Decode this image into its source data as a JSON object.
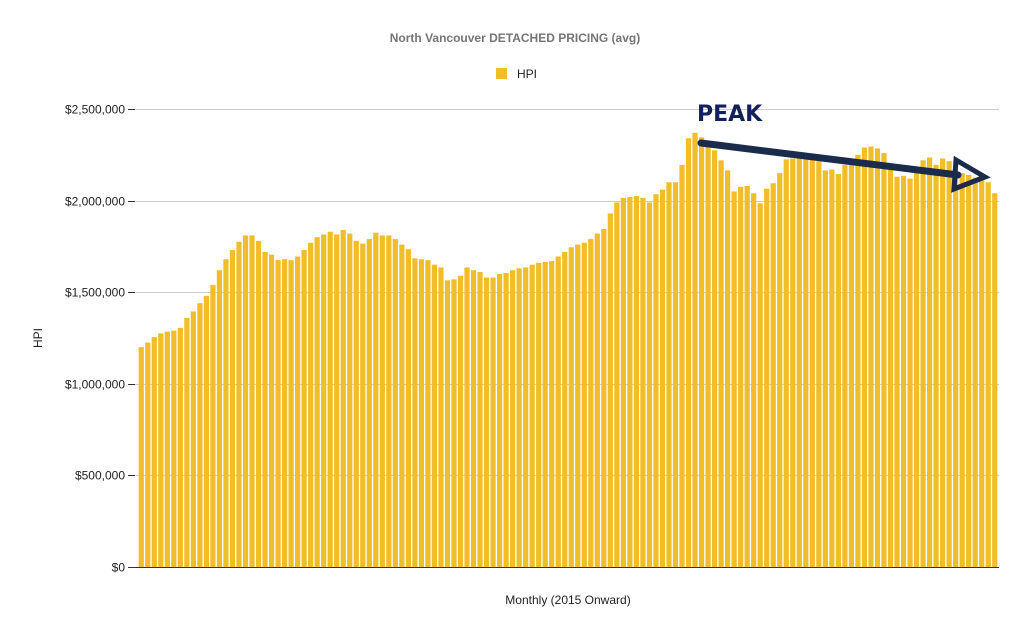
{
  "chart_data": {
    "type": "bar",
    "title": "North Vancouver DETACHED PRICING (avg)",
    "xlabel": "Monthly (2015 Onward)",
    "ylabel": "HPI",
    "ylim": [
      0,
      2500000
    ],
    "yticks": [
      0,
      500000,
      1000000,
      1500000,
      2000000,
      2500000
    ],
    "ytick_labels": [
      "$0",
      "$500,000",
      "$1,000,000",
      "$1,500,000",
      "$2,000,000",
      "$2,500,000"
    ],
    "grid": true,
    "legend": {
      "placement": "top-center",
      "entries": [
        "HPI"
      ]
    },
    "series": [
      {
        "name": "HPI",
        "color": "#f1bd29",
        "values": [
          1200000,
          1225000,
          1255000,
          1275000,
          1285000,
          1290000,
          1305000,
          1360000,
          1395000,
          1440000,
          1480000,
          1540000,
          1620000,
          1680000,
          1730000,
          1775000,
          1810000,
          1810000,
          1780000,
          1720000,
          1705000,
          1675000,
          1680000,
          1675000,
          1695000,
          1730000,
          1770000,
          1800000,
          1815000,
          1830000,
          1815000,
          1840000,
          1820000,
          1780000,
          1765000,
          1790000,
          1825000,
          1810000,
          1810000,
          1790000,
          1760000,
          1735000,
          1685000,
          1680000,
          1675000,
          1650000,
          1635000,
          1565000,
          1570000,
          1590000,
          1635000,
          1620000,
          1610000,
          1580000,
          1580000,
          1600000,
          1605000,
          1620000,
          1630000,
          1635000,
          1650000,
          1660000,
          1665000,
          1670000,
          1695000,
          1720000,
          1745000,
          1760000,
          1770000,
          1790000,
          1820000,
          1845000,
          1930000,
          1990000,
          2015000,
          2020000,
          2025000,
          2015000,
          1990000,
          2035000,
          2060000,
          2100000,
          2100000,
          2195000,
          2340000,
          2370000,
          2345000,
          2320000,
          2275000,
          2220000,
          2165000,
          2050000,
          2075000,
          2080000,
          2040000,
          1985000,
          2065000,
          2095000,
          2150000,
          2225000,
          2230000,
          2240000,
          2235000,
          2225000,
          2215000,
          2165000,
          2170000,
          2145000,
          2195000,
          2225000,
          2250000,
          2290000,
          2295000,
          2285000,
          2260000,
          2185000,
          2130000,
          2135000,
          2120000,
          2185000,
          2220000,
          2235000,
          2195000,
          2230000,
          2215000,
          2160000,
          2150000,
          2140000,
          2125000,
          2110000,
          2100000,
          2040000
        ]
      }
    ],
    "annotations": [
      {
        "text": "PEAK",
        "color": "#14205a"
      },
      {
        "type": "arrow",
        "from_value": 2320000,
        "to_value": 2120000,
        "color": "#1a2b4c"
      }
    ]
  }
}
